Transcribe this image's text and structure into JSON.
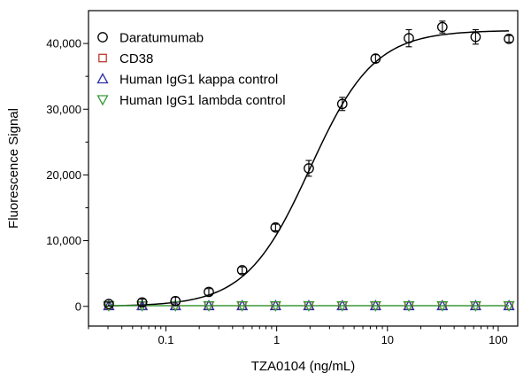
{
  "chart_data": {
    "type": "scatter",
    "title": "",
    "xlabel": "TZA0104 (ng/mL)",
    "ylabel": "Fluorescence Signal",
    "xscale": "log",
    "xlim": [
      0.02,
      150
    ],
    "ylim": [
      -3000,
      45000
    ],
    "grid": false,
    "legend_position": "top-left",
    "x_ticks": [
      {
        "value": 0.1,
        "label": "0.1"
      },
      {
        "value": 1,
        "label": "1"
      },
      {
        "value": 10,
        "label": "10"
      },
      {
        "value": 100,
        "label": "100"
      }
    ],
    "y_ticks": [
      {
        "value": 0,
        "label": "0"
      },
      {
        "value": 10000,
        "label": "10,000"
      },
      {
        "value": 20000,
        "label": "20,000"
      },
      {
        "value": 30000,
        "label": "30,000"
      },
      {
        "value": 40000,
        "label": "40,000"
      }
    ],
    "x": [
      0.0305,
      0.061,
      0.122,
      0.244,
      0.488,
      0.977,
      1.95,
      3.91,
      7.81,
      15.6,
      31.3,
      62.5,
      125
    ],
    "series": [
      {
        "name": "Daratumumab",
        "marker": "circle",
        "color": "#000000",
        "values": [
          350,
          600,
          800,
          2200,
          5500,
          12000,
          21000,
          30800,
          37700,
          40800,
          42500,
          41000,
          40700
        ],
        "errors": [
          300,
          500,
          600,
          500,
          500,
          500,
          1200,
          1000,
          600,
          1300,
          900,
          1100,
          500
        ]
      },
      {
        "name": "CD38",
        "marker": "square",
        "color": "#c0392b",
        "values": [
          100,
          100,
          100,
          100,
          100,
          100,
          100,
          100,
          100,
          100,
          100,
          100,
          100
        ]
      },
      {
        "name": "Human IgG1 kappa control",
        "marker": "triangle-up",
        "color": "#2b2fa0",
        "values": [
          100,
          100,
          100,
          100,
          100,
          100,
          100,
          100,
          100,
          100,
          100,
          100,
          100
        ]
      },
      {
        "name": "Human IgG1 lambda control",
        "marker": "triangle-down",
        "color": "#3a9a3a",
        "values": [
          100,
          100,
          100,
          100,
          100,
          100,
          100,
          100,
          100,
          100,
          100,
          100,
          100
        ]
      }
    ],
    "fit": {
      "series": "Daratumumab",
      "model": "4PL",
      "bottom": 0,
      "top": 42000,
      "ec50": 2.0,
      "hill": 1.5
    }
  }
}
